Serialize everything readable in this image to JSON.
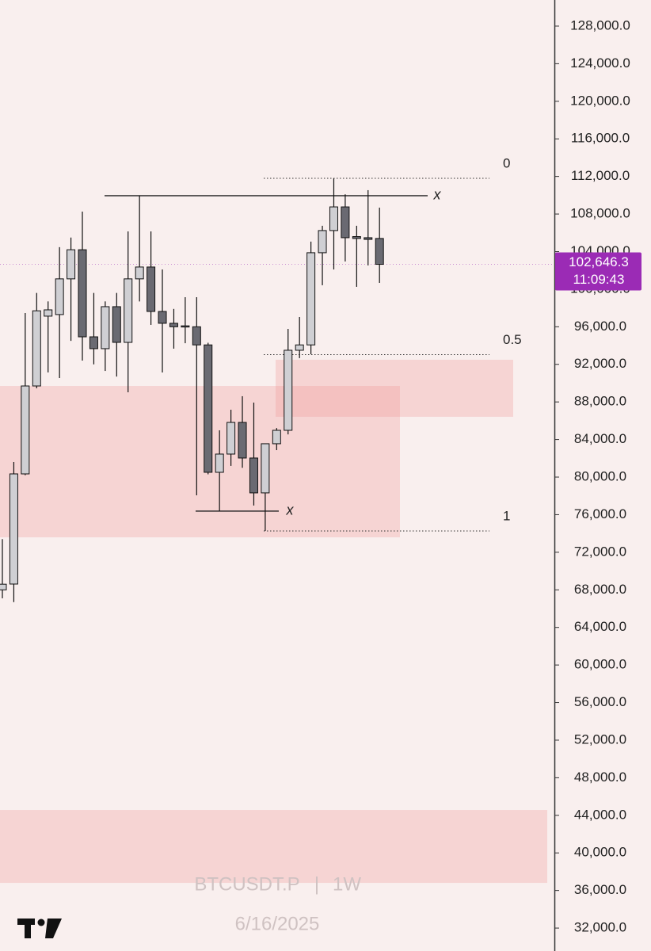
{
  "chart_data": {
    "type": "candlestick",
    "ylim": [
      29560,
      130780
    ],
    "yticks": [
      {
        "value": 128000,
        "label": "128,000.0"
      },
      {
        "value": 124000,
        "label": "124,000.0"
      },
      {
        "value": 120000,
        "label": "120,000.0"
      },
      {
        "value": 116000,
        "label": "116,000.0"
      },
      {
        "value": 112000,
        "label": "112,000.0"
      },
      {
        "value": 108000,
        "label": "108,000.0"
      },
      {
        "value": 104000,
        "label": "104,000.0"
      },
      {
        "value": 100000,
        "label": "100,000.0"
      },
      {
        "value": 96000,
        "label": "96,000.0"
      },
      {
        "value": 92000,
        "label": "92,000.0"
      },
      {
        "value": 88000,
        "label": "88,000.0"
      },
      {
        "value": 84000,
        "label": "84,000.0"
      },
      {
        "value": 80000,
        "label": "80,000.0"
      },
      {
        "value": 76000,
        "label": "76,000.0"
      },
      {
        "value": 72000,
        "label": "72,000.0"
      },
      {
        "value": 68000,
        "label": "68,000.0"
      },
      {
        "value": 64000,
        "label": "64,000.0"
      },
      {
        "value": 60000,
        "label": "60,000.0"
      },
      {
        "value": 56000,
        "label": "56,000.0"
      },
      {
        "value": 52000,
        "label": "52,000.0"
      },
      {
        "value": 48000,
        "label": "48,000.0"
      },
      {
        "value": 44000,
        "label": "44,000.0"
      },
      {
        "value": 40000,
        "label": "40,000.0"
      },
      {
        "value": 36000,
        "label": "36,000.0"
      },
      {
        "value": 32000,
        "label": "32,000.0"
      }
    ],
    "up_color": "#cfcfd3",
    "down_color": "#6a6a72",
    "candles": [
      {
        "open": 68000,
        "high": 73400,
        "low": 67100,
        "close": 68600
      },
      {
        "open": 68616,
        "high": 81600,
        "low": 66700,
        "close": 80340
      },
      {
        "open": 80340,
        "high": 97460,
        "low": 80200,
        "close": 89700
      },
      {
        "open": 89700,
        "high": 99600,
        "low": 89450,
        "close": 97700
      },
      {
        "open": 97130,
        "high": 98700,
        "low": 91140,
        "close": 97800
      },
      {
        "open": 97300,
        "high": 104470,
        "low": 90550,
        "close": 101100
      },
      {
        "open": 101100,
        "high": 105500,
        "low": 94500,
        "close": 104200
      },
      {
        "open": 104200,
        "high": 108260,
        "low": 92400,
        "close": 94930
      },
      {
        "open": 94930,
        "high": 99600,
        "low": 92000,
        "close": 93670
      },
      {
        "open": 93670,
        "high": 98700,
        "low": 91300,
        "close": 98140
      },
      {
        "open": 98140,
        "high": 99600,
        "low": 90700,
        "close": 94340
      },
      {
        "open": 94340,
        "high": 106150,
        "low": 89030,
        "close": 101100
      },
      {
        "open": 101100,
        "high": 109950,
        "low": 98700,
        "close": 102360
      },
      {
        "open": 102360,
        "high": 106150,
        "low": 96200,
        "close": 97630
      },
      {
        "open": 97630,
        "high": 102100,
        "low": 91140,
        "close": 96370
      },
      {
        "open": 96370,
        "high": 97900,
        "low": 93670,
        "close": 96000
      },
      {
        "open": 96100,
        "high": 99150,
        "low": 94250,
        "close": 96000
      },
      {
        "open": 96000,
        "high": 99150,
        "low": 78060,
        "close": 94070
      },
      {
        "open": 94070,
        "high": 94300,
        "low": 80300,
        "close": 80510
      },
      {
        "open": 80510,
        "high": 84980,
        "low": 76380,
        "close": 82450
      },
      {
        "open": 82450,
        "high": 87170,
        "low": 81190,
        "close": 85820
      },
      {
        "open": 85820,
        "high": 88610,
        "low": 80990,
        "close": 82030
      },
      {
        "open": 82030,
        "high": 87930,
        "low": 76970,
        "close": 78320
      },
      {
        "open": 78320,
        "high": 83550,
        "low": 74270,
        "close": 83550
      },
      {
        "open": 83550,
        "high": 85220,
        "low": 82870,
        "close": 84980
      },
      {
        "open": 84980,
        "high": 95780,
        "low": 84550,
        "close": 93500
      },
      {
        "open": 93500,
        "high": 97040,
        "low": 92660,
        "close": 94070
      },
      {
        "open": 94070,
        "high": 105060,
        "low": 93080,
        "close": 103880
      },
      {
        "open": 103880,
        "high": 106750,
        "low": 100420,
        "close": 106240
      },
      {
        "open": 106240,
        "high": 111800,
        "low": 102100,
        "close": 108760
      },
      {
        "open": 108760,
        "high": 110100,
        "low": 102950,
        "close": 105480
      },
      {
        "open": 105600,
        "high": 106750,
        "low": 100250,
        "close": 105400
      },
      {
        "open": 105480,
        "high": 110540,
        "low": 102530,
        "close": 105300
      },
      {
        "open": 105400,
        "high": 108680,
        "low": 100670,
        "close": 102646.3
      }
    ],
    "zones": [
      {
        "top": 89700,
        "bottom": 73590
      },
      {
        "top": 92490,
        "bottom": 86420
      },
      {
        "top": 44570,
        "bottom": 36810
      }
    ],
    "lines": [
      {
        "value": 109950,
        "label": "x"
      },
      {
        "value": 76380,
        "label": "x"
      }
    ],
    "fib_levels": [
      {
        "value": 111800,
        "label": "0"
      },
      {
        "value": 93035,
        "label": "0.5"
      },
      {
        "value": 74270,
        "label": "1"
      }
    ],
    "last_price": {
      "value": 102646.3,
      "label": "102,646.3",
      "countdown": "11:09:43",
      "color": "#9b2bb5"
    },
    "watermark": {
      "symbol": "BTCUSDT.P",
      "separator": "|",
      "interval": "1W",
      "date": "6/16/2025"
    }
  }
}
